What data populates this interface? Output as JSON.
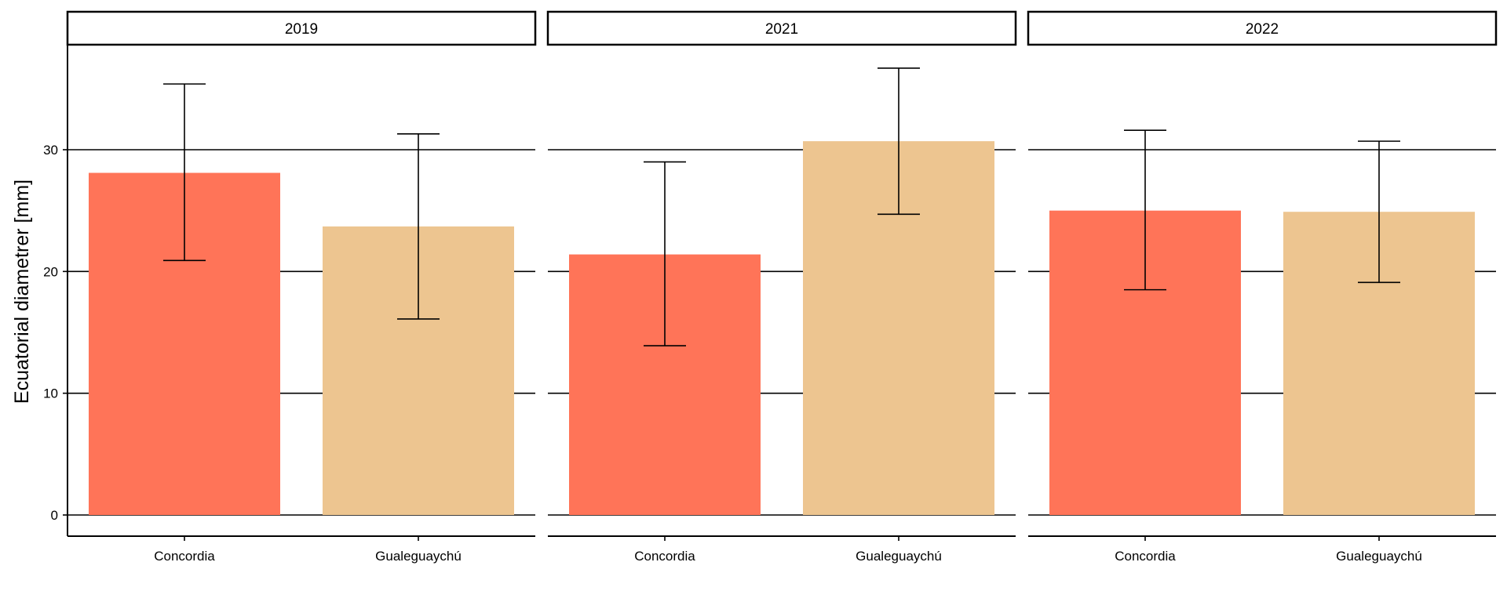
{
  "chart_data": {
    "type": "bar",
    "ylabel": "Ecuatorial diametrer [mm]",
    "xlabel": "",
    "ylim": [
      0,
      38
    ],
    "yticks": [
      0,
      10,
      20,
      30
    ],
    "grid": "horizontal major lines",
    "categories": [
      "Concordia",
      "Gualeguaychú"
    ],
    "colors": {
      "Concordia": "#FF7458",
      "Gualeguaychú": "#EDC590"
    },
    "facets": [
      {
        "label": "2019",
        "bars": [
          {
            "category": "Concordia",
            "value": 28.1,
            "error_low": 20.9,
            "error_high": 35.4
          },
          {
            "category": "Gualeguaychú",
            "value": 23.7,
            "error_low": 16.1,
            "error_high": 31.3
          }
        ]
      },
      {
        "label": "2021",
        "bars": [
          {
            "category": "Concordia",
            "value": 21.4,
            "error_low": 13.9,
            "error_high": 29.0
          },
          {
            "category": "Gualeguaychú",
            "value": 30.7,
            "error_low": 24.7,
            "error_high": 36.7
          }
        ]
      },
      {
        "label": "2022",
        "bars": [
          {
            "category": "Concordia",
            "value": 25.0,
            "error_low": 18.5,
            "error_high": 31.6
          },
          {
            "category": "Gualeguaychú",
            "value": 24.9,
            "error_low": 19.1,
            "error_high": 30.7
          }
        ]
      }
    ]
  }
}
